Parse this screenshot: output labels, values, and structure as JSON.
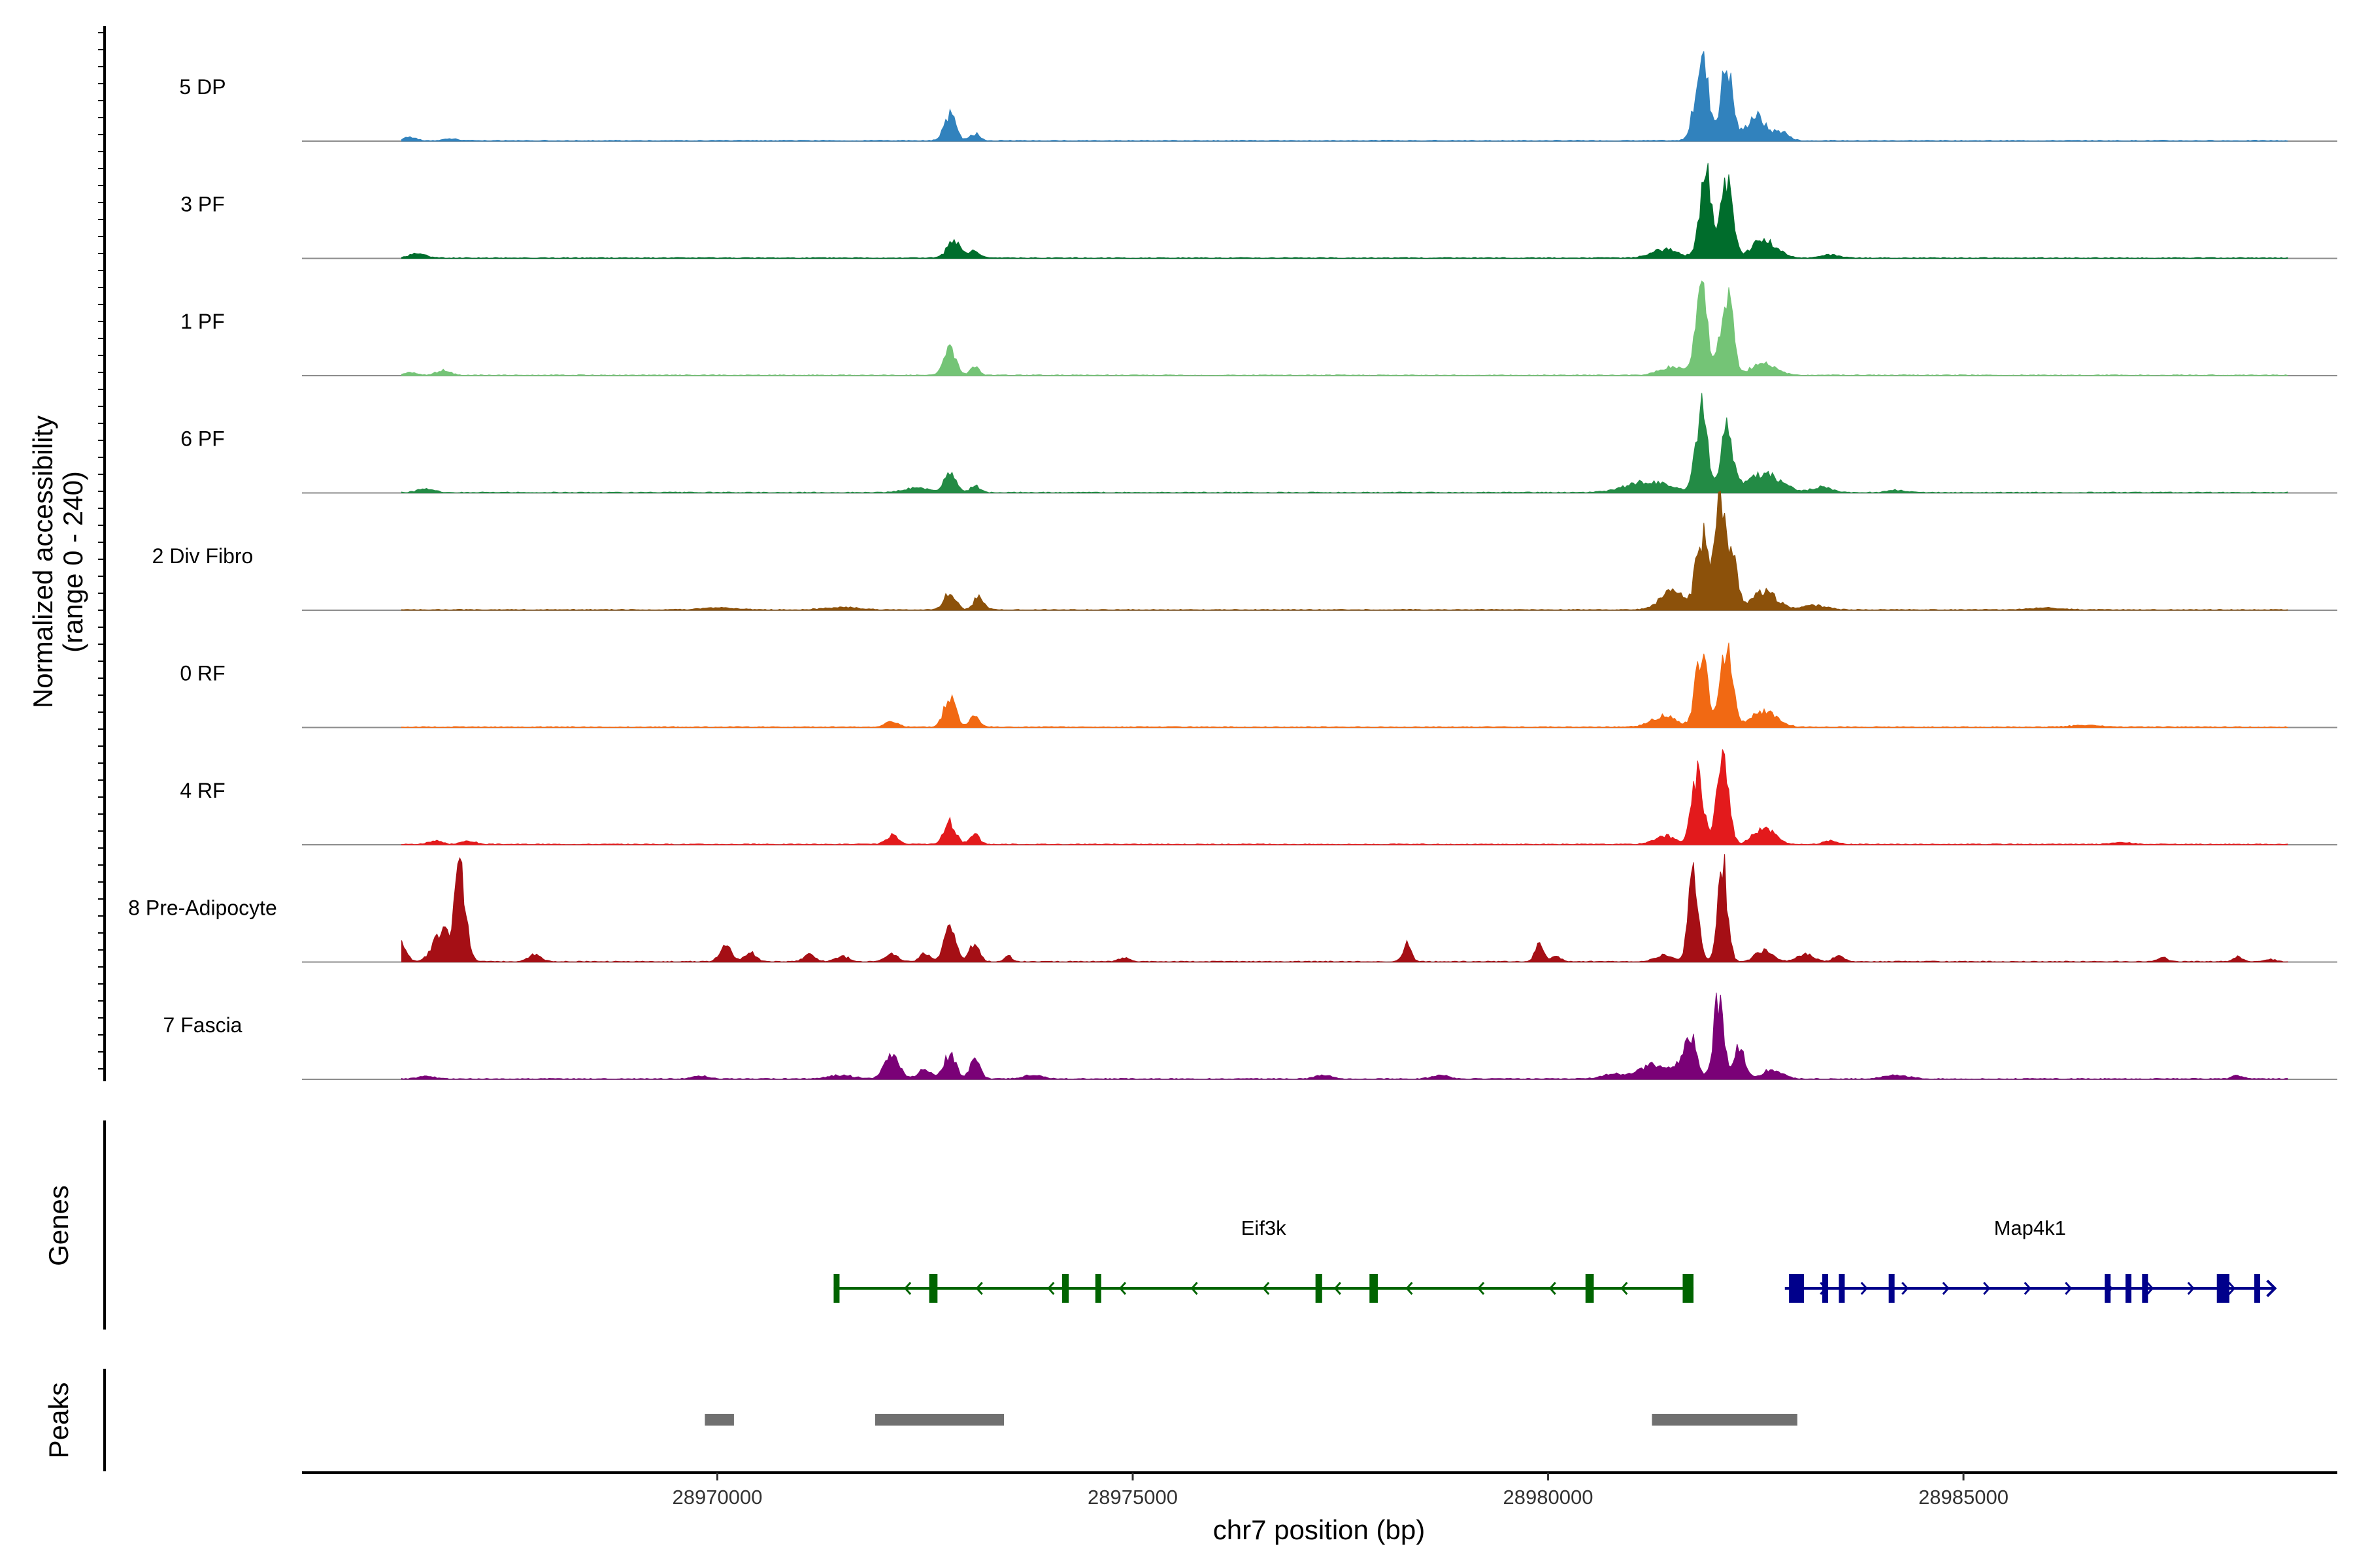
{
  "chart_data": {
    "type": "area",
    "title": "",
    "ylabel_line1": "Normalized accessibility",
    "ylabel_line2": "(range 0 - 240)",
    "xlabel": "chr7 position (bp)",
    "xlim": [
      28965000,
      28989500
    ],
    "ylim": [
      0,
      240
    ],
    "x_ticks": [
      28970000,
      28975000,
      28980000,
      28985000
    ],
    "x_tick_labels": [
      "28970000",
      "28975000",
      "28980000",
      "28985000"
    ],
    "series": [
      {
        "name": "5 DP",
        "color": "#3182bd",
        "peaks": [
          [
            28966300,
            8,
            70
          ],
          [
            28966800,
            4,
            90
          ],
          [
            28972800,
            55,
            70
          ],
          [
            28973100,
            15,
            60
          ],
          [
            28981850,
            180,
            80
          ],
          [
            28982150,
            165,
            70
          ],
          [
            28982500,
            55,
            110
          ],
          [
            28982800,
            20,
            90
          ]
        ]
      },
      {
        "name": "3 PF",
        "color": "#006d2c",
        "peaks": [
          [
            28966400,
            10,
            100
          ],
          [
            28972850,
            40,
            80
          ],
          [
            28973100,
            15,
            60
          ],
          [
            28981900,
            190,
            75
          ],
          [
            28982150,
            165,
            70
          ],
          [
            28981400,
            20,
            150
          ],
          [
            28982600,
            40,
            150
          ],
          [
            28983400,
            8,
            100
          ]
        ]
      },
      {
        "name": "1 PF",
        "color": "#74c476",
        "peaks": [
          [
            28966300,
            6,
            80
          ],
          [
            28966700,
            10,
            90
          ],
          [
            28972800,
            65,
            70
          ],
          [
            28973100,
            20,
            50
          ],
          [
            28981850,
            180,
            70
          ],
          [
            28982150,
            195,
            70
          ],
          [
            28981500,
            18,
            150
          ],
          [
            28982600,
            30,
            140
          ]
        ]
      },
      {
        "name": "6 PF",
        "color": "#238b45",
        "peaks": [
          [
            28966500,
            8,
            100
          ],
          [
            28972400,
            10,
            150
          ],
          [
            28972800,
            40,
            70
          ],
          [
            28973100,
            15,
            60
          ],
          [
            28981850,
            180,
            70
          ],
          [
            28982150,
            140,
            70
          ],
          [
            28981200,
            25,
            250
          ],
          [
            28982600,
            40,
            200
          ],
          [
            28983300,
            12,
            120
          ],
          [
            28984200,
            6,
            100
          ]
        ]
      },
      {
        "name": "2 Div Fibro",
        "color": "#8c510a",
        "peaks": [
          [
            28972800,
            40,
            70
          ],
          [
            28973150,
            30,
            60
          ],
          [
            28971500,
            6,
            200
          ],
          [
            28970000,
            5,
            200
          ],
          [
            28981850,
            160,
            70
          ],
          [
            28982050,
            235,
            60
          ],
          [
            28982200,
            130,
            70
          ],
          [
            28981500,
            40,
            150
          ],
          [
            28982600,
            40,
            150
          ],
          [
            28983200,
            10,
            150
          ],
          [
            28986000,
            4,
            200
          ]
        ]
      },
      {
        "name": "0 RF",
        "color": "#f16913",
        "peaks": [
          [
            28972100,
            12,
            80
          ],
          [
            28972800,
            70,
            70
          ],
          [
            28973100,
            25,
            60
          ],
          [
            28981850,
            170,
            70
          ],
          [
            28982150,
            165,
            70
          ],
          [
            28981400,
            25,
            150
          ],
          [
            28982600,
            35,
            150
          ],
          [
            28986500,
            4,
            200
          ]
        ]
      },
      {
        "name": "4 RF",
        "color": "#e31a1c",
        "peaks": [
          [
            28966600,
            8,
            80
          ],
          [
            28967000,
            8,
            80
          ],
          [
            28972100,
            20,
            70
          ],
          [
            28972800,
            50,
            70
          ],
          [
            28973100,
            20,
            60
          ],
          [
            28981800,
            150,
            70
          ],
          [
            28982100,
            200,
            70
          ],
          [
            28981400,
            20,
            120
          ],
          [
            28982600,
            40,
            120
          ],
          [
            28983400,
            8,
            80
          ],
          [
            28986900,
            4,
            120
          ]
        ]
      },
      {
        "name": "8 Pre-Adipocyte",
        "color": "#a50f15",
        "peaks": [
          [
            28966200,
            40,
            60
          ],
          [
            28966600,
            30,
            80
          ],
          [
            28966900,
            190,
            70
          ],
          [
            28966700,
            60,
            60
          ],
          [
            28967800,
            15,
            80
          ],
          [
            28970100,
            35,
            70
          ],
          [
            28970400,
            20,
            70
          ],
          [
            28971100,
            15,
            70
          ],
          [
            28971500,
            12,
            80
          ],
          [
            28972100,
            18,
            70
          ],
          [
            28972500,
            20,
            60
          ],
          [
            28972800,
            75,
            70
          ],
          [
            28973100,
            40,
            60
          ],
          [
            28973500,
            12,
            50
          ],
          [
            28974900,
            10,
            60
          ],
          [
            28978300,
            40,
            50
          ],
          [
            28979900,
            45,
            50
          ],
          [
            28980100,
            12,
            50
          ],
          [
            28981400,
            15,
            100
          ],
          [
            28981750,
            185,
            60
          ],
          [
            28982100,
            210,
            60
          ],
          [
            28982600,
            25,
            100
          ],
          [
            28983100,
            15,
            100
          ],
          [
            28983500,
            15,
            60
          ],
          [
            28987400,
            10,
            60
          ],
          [
            28988300,
            10,
            50
          ],
          [
            28988700,
            6,
            50
          ]
        ]
      },
      {
        "name": "7 Fascia",
        "color": "#7a0177",
        "peaks": [
          [
            28966500,
            6,
            100
          ],
          [
            28969800,
            6,
            100
          ],
          [
            28971500,
            8,
            150
          ],
          [
            28972100,
            50,
            90
          ],
          [
            28972500,
            20,
            80
          ],
          [
            28972800,
            55,
            70
          ],
          [
            28973100,
            40,
            60
          ],
          [
            28973800,
            8,
            120
          ],
          [
            28977300,
            8,
            100
          ],
          [
            28978700,
            8,
            100
          ],
          [
            28980800,
            10,
            150
          ],
          [
            28981300,
            30,
            200
          ],
          [
            28981700,
            100,
            80
          ],
          [
            28982050,
            170,
            60
          ],
          [
            28982300,
            70,
            70
          ],
          [
            28982700,
            20,
            120
          ],
          [
            28984200,
            8,
            150
          ],
          [
            28988300,
            8,
            60
          ]
        ]
      }
    ],
    "genes": [
      {
        "name": "Eif3k",
        "color": "#006400",
        "start": 28971400,
        "end": 28981750,
        "strand": "-",
        "exons": [
          [
            28971400,
            28971450
          ],
          [
            28972550,
            28972650
          ],
          [
            28974150,
            28974230
          ],
          [
            28974550,
            28974620
          ],
          [
            28977200,
            28977280
          ],
          [
            28977850,
            28977950
          ],
          [
            28980450,
            28980550
          ],
          [
            28981620,
            28981750
          ]
        ]
      },
      {
        "name": "Map4k1",
        "color": "#00008b",
        "start": 28982850,
        "end": 28988750,
        "strand": "+",
        "exons": [
          [
            28982900,
            28983080
          ],
          [
            28983300,
            28983360
          ],
          [
            28983500,
            28983560
          ],
          [
            28984100,
            28984150
          ],
          [
            28986700,
            28986750
          ],
          [
            28986950,
            28987000
          ],
          [
            28987150,
            28987220
          ],
          [
            28988050,
            28988200
          ],
          [
            28988500,
            28988540
          ]
        ]
      }
    ],
    "peaks_track": [
      [
        28969850,
        28970200
      ],
      [
        28971900,
        28973450
      ],
      [
        28981250,
        28983000
      ]
    ],
    "genes_label": "Genes",
    "peaks_label": "Peaks"
  }
}
